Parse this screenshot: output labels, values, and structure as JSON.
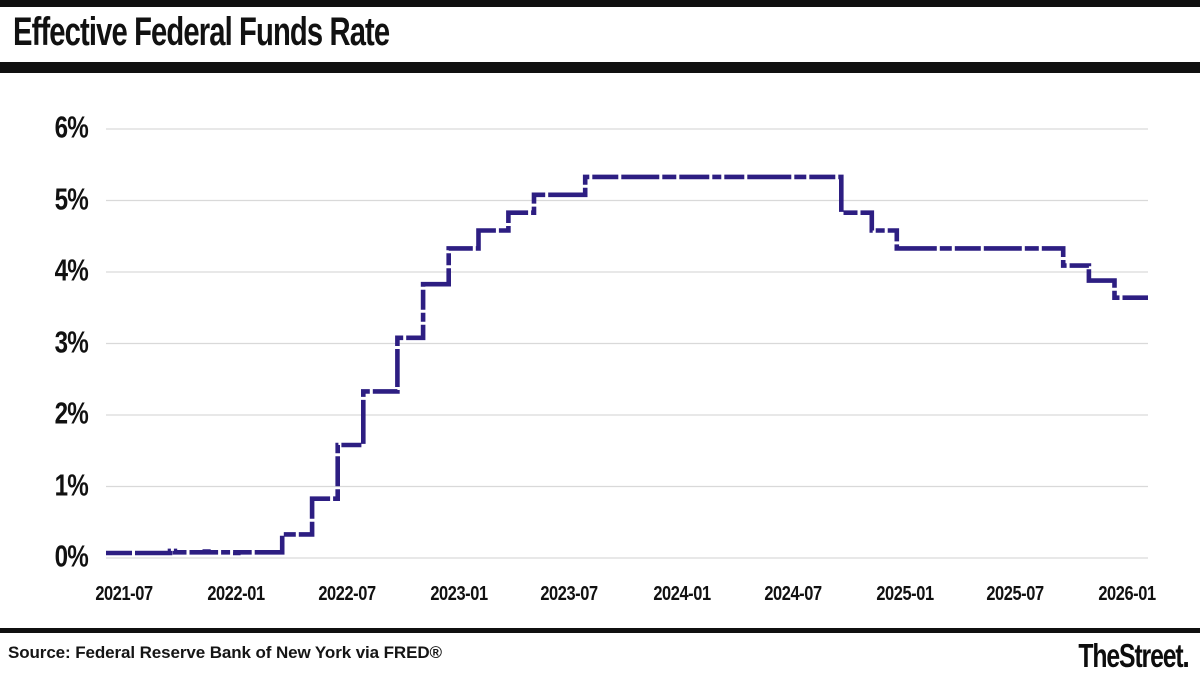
{
  "header": {
    "title": "Effective Federal Funds Rate"
  },
  "footer": {
    "source": "Source: Federal Reserve Bank of New York via FRED®",
    "brand": "TheStreet"
  },
  "colors": {
    "line": "#2d1e82",
    "grid": "#d9d9d9",
    "rule_bars": "#101010"
  },
  "chart_data": {
    "type": "line",
    "style": "step-after",
    "title": "Effective Federal Funds Rate",
    "xlabel": "",
    "ylabel": "",
    "unit": "percent",
    "grid": "horizontal-only",
    "legend": "none",
    "ylim": [
      0,
      6
    ],
    "y_ticks": [
      "0%",
      "1%",
      "2%",
      "3%",
      "4%",
      "5%",
      "6%"
    ],
    "x_ticks": [
      "2021-07",
      "2022-01",
      "2022-07",
      "2023-01",
      "2023-07",
      "2024-01",
      "2024-07",
      "2025-01",
      "2025-07",
      "2026-01"
    ],
    "x_domain": [
      "2021-06-01",
      "2026-02-04"
    ],
    "series": [
      {
        "name": "Effective Federal Funds Rate (%)",
        "points": [
          [
            "2021-06-01",
            0.07
          ],
          [
            "2021-09-14",
            0.1
          ],
          [
            "2021-09-22",
            0.08
          ],
          [
            "2021-11-10",
            0.09
          ],
          [
            "2021-11-16",
            0.08
          ],
          [
            "2021-12-30",
            0.07
          ],
          [
            "2022-01-04",
            0.08
          ],
          [
            "2022-03-17",
            0.33
          ],
          [
            "2022-05-05",
            0.83
          ],
          [
            "2022-06-16",
            1.58
          ],
          [
            "2022-07-28",
            2.33
          ],
          [
            "2022-09-22",
            3.08
          ],
          [
            "2022-11-03",
            3.83
          ],
          [
            "2022-12-15",
            4.33
          ],
          [
            "2023-02-02",
            4.58
          ],
          [
            "2023-03-23",
            4.83
          ],
          [
            "2023-05-04",
            5.08
          ],
          [
            "2023-07-27",
            5.33
          ],
          [
            "2024-09-19",
            4.83
          ],
          [
            "2024-11-08",
            4.58
          ],
          [
            "2024-12-19",
            4.33
          ],
          [
            "2025-09-18",
            4.09
          ],
          [
            "2025-10-30",
            3.88
          ],
          [
            "2025-12-11",
            3.64
          ]
        ]
      }
    ]
  }
}
